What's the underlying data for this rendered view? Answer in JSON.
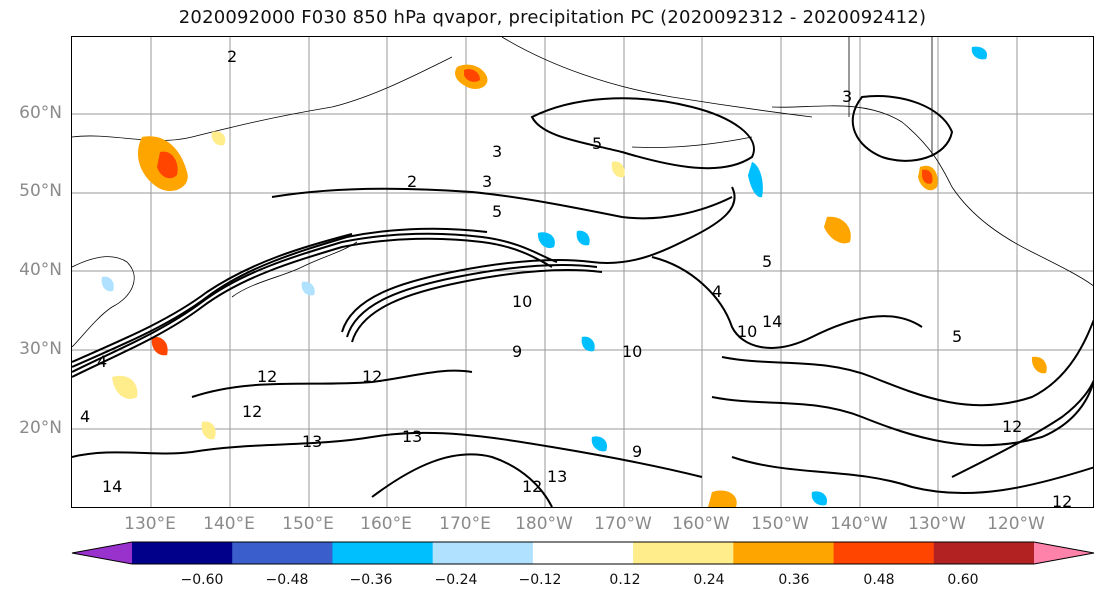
{
  "title": "2020092000 F030 850 hPa qvapor, precipitation PC (2020092312 - 2020092412)",
  "lat_labels": [
    "60°N",
    "50°N",
    "40°N",
    "30°N",
    "20°N"
  ],
  "lon_labels": [
    "130°E",
    "140°E",
    "150°E",
    "160°E",
    "170°E",
    "180°W",
    "170°W",
    "160°W",
    "150°W",
    "140°W",
    "130°W",
    "120°W"
  ],
  "contour_labels": [
    "2",
    "3",
    "5",
    "2",
    "3",
    "5",
    "4",
    "10",
    "12",
    "13",
    "12",
    "13",
    "9",
    "10",
    "12",
    "13",
    "14",
    "12",
    "3",
    "5",
    "10",
    "4",
    "14",
    "12",
    "9",
    "5",
    "4",
    "12"
  ],
  "colorbar": {
    "ticks": [
      "−0.60",
      "−0.48",
      "−0.36",
      "−0.24",
      "−0.12",
      "0.12",
      "0.24",
      "0.36",
      "0.48",
      "0.60"
    ],
    "colors": [
      "#9932cc",
      "#00008b",
      "#3a5fcd",
      "#00bfff",
      "#b0e2ff",
      "#ffffff",
      "#ffec8b",
      "#ffa500",
      "#ff4500",
      "#b22222",
      "#ff82ab"
    ]
  }
}
